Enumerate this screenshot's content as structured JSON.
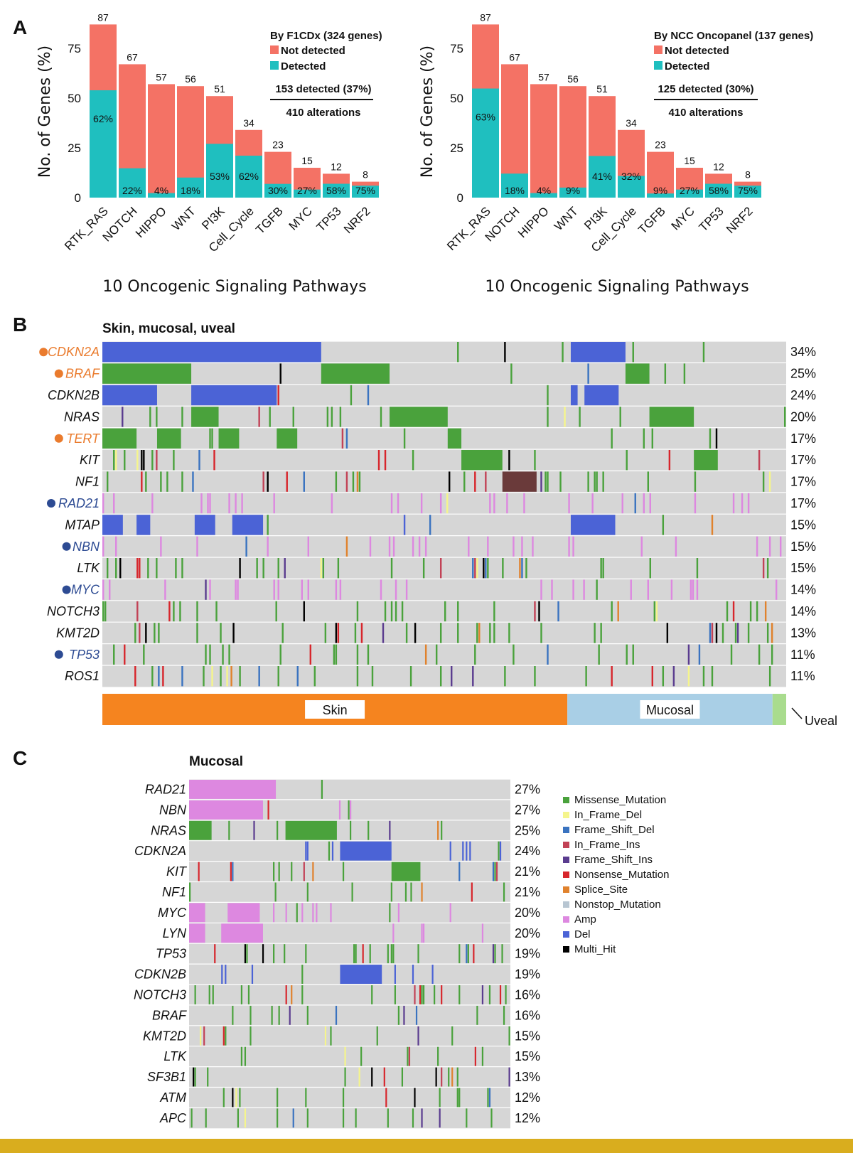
{
  "colors": {
    "not_detected": "#f47265",
    "detected": "#1fbfbf",
    "grid_bg": "#d6d6d6",
    "highlight_orange": "#ea7b2d",
    "highlight_blue": "#2d4b93",
    "skin": "#f5841f",
    "mucosal": "#a9cfe6",
    "uveal": "#a9dc8e",
    "bottom_band": "#d9ad1e"
  },
  "panel_letters": {
    "a": "A",
    "b": "B",
    "c": "C"
  },
  "chart_data": [
    {
      "type": "bar",
      "panel": "A-left",
      "xlabel": "10 Oncogenic Signaling Pathways",
      "ylabel": "No. of Genes (%)",
      "yticks": [
        "0",
        "25",
        "50",
        "75"
      ],
      "ylim": [
        0,
        90
      ],
      "categories": [
        "RTK_RAS",
        "NOTCH",
        "HIPPO",
        "WNT",
        "PI3K",
        "Cell_Cycle",
        "TGFB",
        "MYC",
        "TP53",
        "NRF2"
      ],
      "totals": [
        87,
        67,
        57,
        56,
        51,
        34,
        23,
        15,
        12,
        8
      ],
      "total_labels": [
        "87",
        "67",
        "57",
        "56",
        "51",
        "34",
        "23",
        "15",
        "12",
        "8"
      ],
      "detected_pct": [
        62,
        22,
        4,
        18,
        53,
        62,
        30,
        27,
        58,
        75
      ],
      "detected_labels": [
        "62%",
        "22%",
        "4%",
        "18%",
        "53%",
        "62%",
        "30%",
        "27%",
        "58%",
        "75%"
      ],
      "legend": {
        "title": "By F1CDx (324 genes)",
        "not_detected": "Not detected",
        "detected": "Detected",
        "summary": "153 detected (37%)",
        "alterations": "410 alterations"
      }
    },
    {
      "type": "bar",
      "panel": "A-right",
      "xlabel": "10 Oncogenic Signaling Pathways",
      "ylabel": "No. of Genes (%)",
      "yticks": [
        "0",
        "25",
        "50",
        "75"
      ],
      "ylim": [
        0,
        90
      ],
      "categories": [
        "RTK_RAS",
        "NOTCH",
        "HIPPO",
        "WNT",
        "PI3K",
        "Cell_Cycle",
        "TGFB",
        "MYC",
        "TP53",
        "NRF2"
      ],
      "totals": [
        87,
        67,
        57,
        56,
        51,
        34,
        23,
        15,
        12,
        8
      ],
      "total_labels": [
        "87",
        "67",
        "57",
        "56",
        "51",
        "34",
        "23",
        "15",
        "12",
        "8"
      ],
      "detected_pct": [
        63,
        18,
        4,
        9,
        41,
        32,
        9,
        27,
        58,
        75
      ],
      "detected_labels": [
        "63%",
        "18%",
        "4%",
        "9%",
        "41%",
        "32%",
        "9%",
        "27%",
        "58%",
        "75%"
      ],
      "legend": {
        "title": "By NCC Oncopanel (137 genes)",
        "not_detected": "Not detected",
        "detected": "Detected",
        "summary": "125 detected (30%)",
        "alterations": "410 alterations"
      }
    },
    {
      "type": "heatmap",
      "panel": "B",
      "subtitle": "Skin, mucosal, uveal",
      "genes": [
        {
          "name": "CDKN2A",
          "pct": "34%",
          "highlight": "orange"
        },
        {
          "name": "BRAF",
          "pct": "25%",
          "highlight": "orange"
        },
        {
          "name": "CDKN2B",
          "pct": "24%",
          "highlight": "none"
        },
        {
          "name": "NRAS",
          "pct": "20%",
          "highlight": "none"
        },
        {
          "name": "TERT",
          "pct": "17%",
          "highlight": "orange"
        },
        {
          "name": "KIT",
          "pct": "17%",
          "highlight": "none"
        },
        {
          "name": "NF1",
          "pct": "17%",
          "highlight": "none"
        },
        {
          "name": "RAD21",
          "pct": "17%",
          "highlight": "blue"
        },
        {
          "name": "MTAP",
          "pct": "15%",
          "highlight": "none"
        },
        {
          "name": "NBN",
          "pct": "15%",
          "highlight": "blue"
        },
        {
          "name": "LTK",
          "pct": "15%",
          "highlight": "none"
        },
        {
          "name": "MYC",
          "pct": "14%",
          "highlight": "blue"
        },
        {
          "name": "NOTCH3",
          "pct": "14%",
          "highlight": "none"
        },
        {
          "name": "KMT2D",
          "pct": "13%",
          "highlight": "none"
        },
        {
          "name": "TP53",
          "pct": "11%",
          "highlight": "blue"
        },
        {
          "name": "ROS1",
          "pct": "11%",
          "highlight": "none"
        }
      ],
      "types": [
        {
          "name": "Skin",
          "fraction": 0.68
        },
        {
          "name": "Mucosal",
          "fraction": 0.3
        },
        {
          "name": "Uveal",
          "fraction": 0.04
        }
      ]
    },
    {
      "type": "heatmap",
      "panel": "C",
      "subtitle": "Mucosal",
      "genes": [
        {
          "name": "RAD21",
          "pct": "27%"
        },
        {
          "name": "NBN",
          "pct": "27%"
        },
        {
          "name": "NRAS",
          "pct": "25%"
        },
        {
          "name": "CDKN2A",
          "pct": "24%"
        },
        {
          "name": "KIT",
          "pct": "21%"
        },
        {
          "name": "NF1",
          "pct": "21%"
        },
        {
          "name": "MYC",
          "pct": "20%"
        },
        {
          "name": "LYN",
          "pct": "20%"
        },
        {
          "name": "TP53",
          "pct": "19%"
        },
        {
          "name": "CDKN2B",
          "pct": "19%"
        },
        {
          "name": "NOTCH3",
          "pct": "16%"
        },
        {
          "name": "BRAF",
          "pct": "16%"
        },
        {
          "name": "KMT2D",
          "pct": "15%"
        },
        {
          "name": "LTK",
          "pct": "15%"
        },
        {
          "name": "SF3B1",
          "pct": "13%"
        },
        {
          "name": "ATM",
          "pct": "12%"
        },
        {
          "name": "APC",
          "pct": "12%"
        }
      ],
      "legend": [
        {
          "label": "Missense_Mutation",
          "color": "#4aa23c"
        },
        {
          "label": "In_Frame_Del",
          "color": "#f5f58c"
        },
        {
          "label": "Frame_Shift_Del",
          "color": "#3a73c0"
        },
        {
          "label": "In_Frame_Ins",
          "color": "#c24256"
        },
        {
          "label": "Frame_Shift_Ins",
          "color": "#5a3c8f"
        },
        {
          "label": "Nonsense_Mutation",
          "color": "#d7262c"
        },
        {
          "label": "Splice_Site",
          "color": "#e0822d"
        },
        {
          "label": "Nonstop_Mutation",
          "color": "#b8c6d2"
        },
        {
          "label": "Amp",
          "color": "#dd88e0"
        },
        {
          "label": "Del",
          "color": "#4b63d6"
        },
        {
          "label": "Multi_Hit",
          "color": "#000000"
        }
      ]
    }
  ]
}
